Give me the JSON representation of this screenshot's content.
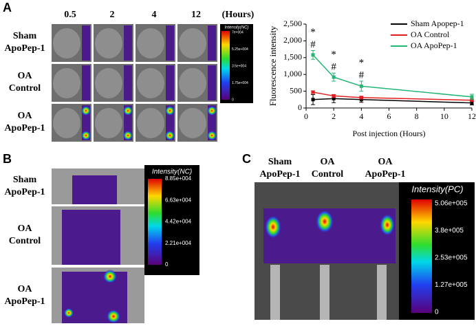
{
  "panel_a": {
    "label": "A",
    "times": [
      "0.5",
      "2",
      "4",
      "12"
    ],
    "time_unit": "(Hours)",
    "rows": [
      [
        "Sham",
        "ApoPep-1"
      ],
      [
        "OA",
        "Control"
      ],
      [
        "OA",
        "ApoPep-1"
      ]
    ],
    "colorbar": {
      "title": "Intensity(NC)",
      "ticks": [
        "7e+004",
        "5.25e+004",
        "3.5e+004",
        "1.75e+004",
        "0"
      ]
    }
  },
  "chart_data": {
    "type": "line",
    "xlabel": "Post injection (Hours)",
    "ylabel": "Fluorescence intensity",
    "x": [
      0.5,
      2,
      4,
      12
    ],
    "series": [
      {
        "name": "Sham Apopep-1",
        "color": "#000000",
        "values": [
          250,
          280,
          250,
          150
        ],
        "errors": [
          150,
          120,
          80,
          60
        ]
      },
      {
        "name": "OA Control",
        "color": "#e41a1c",
        "values": [
          470,
          360,
          310,
          230
        ],
        "errors": [
          40,
          40,
          40,
          30
        ]
      },
      {
        "name": "OA ApoPep-1",
        "color": "#22b573",
        "values": [
          1580,
          920,
          650,
          330
        ],
        "errors": [
          130,
          120,
          150,
          80
        ]
      }
    ],
    "annotations": [
      {
        "x": 0.5,
        "labels": [
          "*",
          "#"
        ]
      },
      {
        "x": 2,
        "labels": [
          "*",
          "#"
        ]
      },
      {
        "x": 4,
        "labels": [
          "*",
          "#"
        ]
      }
    ],
    "xlim": [
      0,
      12
    ],
    "xticks": [
      0,
      2,
      4,
      6,
      8,
      10,
      12
    ],
    "ylim": [
      0,
      2500
    ],
    "yticks": [
      0,
      500,
      {
        "value": 1000,
        "label": "1,000"
      },
      {
        "value": 1500,
        "label": "1,500"
      },
      {
        "value": 2000,
        "label": "2,000"
      },
      {
        "value": 2500,
        "label": "2,500"
      }
    ],
    "legend": "upper right"
  },
  "panel_b": {
    "label": "B",
    "rows": [
      [
        "Sham",
        "ApoPep-1"
      ],
      [
        "OA",
        "Control"
      ],
      [
        "OA",
        "ApoPep-1"
      ]
    ],
    "colorbar": {
      "title": "Intensity(NC)",
      "ticks": [
        "8.85e+004",
        "6.63e+004",
        "4.42e+004",
        "2.21e+004",
        "0"
      ]
    }
  },
  "panel_c": {
    "label": "C",
    "columns": [
      [
        "Sham",
        "ApoPep-1"
      ],
      [
        "OA",
        "Control"
      ],
      [
        "OA",
        "ApoPep-1"
      ]
    ],
    "colorbar": {
      "title": "Intensity(PC)",
      "ticks": [
        "5.06e+005",
        "3.8e+005",
        "2.53e+005",
        "1.27e+005",
        "0"
      ]
    }
  }
}
